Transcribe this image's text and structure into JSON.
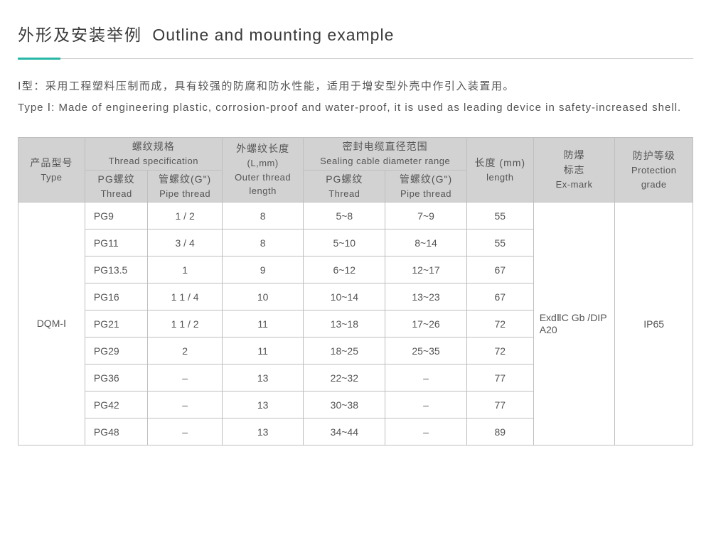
{
  "title": {
    "cn": "外形及安装举例",
    "en": "Outline and mounting example"
  },
  "desc": {
    "cn": "Ⅰ型：采用工程塑料压制而成，具有较强的防腐和防水性能，适用于增安型外壳中作引入装置用。",
    "en": "Type Ⅰ: Made of engineering plastic, corrosion-proof and water-proof, it is used as leading device in safety-increased shell."
  },
  "headers": {
    "type": {
      "cn": "产品型号",
      "en": "Type"
    },
    "threadSpec": {
      "cn": "螺纹规格",
      "en": "Thread specification"
    },
    "outerLen": {
      "cn": "外螺纹长度",
      "mid": "(L,mm)",
      "en": "Outer thread length"
    },
    "sealRange": {
      "cn": "密封电缆直径范围",
      "en": "Sealing cable diameter range"
    },
    "length": {
      "cn": "长度 (mm)",
      "en": "length"
    },
    "exmark": {
      "cn": "防爆",
      "cn2": "标志",
      "en": "Ex-mark"
    },
    "grade": {
      "cn": "防护等级",
      "en": "Protection grade"
    },
    "pg": {
      "cn": "PG螺纹",
      "en": "Thread"
    },
    "pipe": {
      "cn": "管螺纹(G\")",
      "en": "Pipe thread"
    }
  },
  "body": {
    "typeLabel": "DQM-Ⅰ",
    "exmark": "ExdⅡC Gb /DIP A20",
    "grade": "IP65",
    "rows": [
      {
        "pg": "PG9",
        "pipe": "1 / 2",
        "outer": "8",
        "spg": "5~8",
        "spipe": "7~9",
        "len": "55"
      },
      {
        "pg": "PG11",
        "pipe": "3 / 4",
        "outer": "8",
        "spg": "5~10",
        "spipe": "8~14",
        "len": "55"
      },
      {
        "pg": "PG13.5",
        "pipe": "1",
        "outer": "9",
        "spg": "6~12",
        "spipe": "12~17",
        "len": "67"
      },
      {
        "pg": "PG16",
        "pipe": "1 1 / 4",
        "outer": "10",
        "spg": "10~14",
        "spipe": "13~23",
        "len": "67"
      },
      {
        "pg": "PG21",
        "pipe": "1 1 / 2",
        "outer": "11",
        "spg": "13~18",
        "spipe": "17~26",
        "len": "72"
      },
      {
        "pg": "PG29",
        "pipe": "2",
        "outer": "11",
        "spg": "18~25",
        "spipe": "25~35",
        "len": "72"
      },
      {
        "pg": "PG36",
        "pipe": "–",
        "outer": "13",
        "spg": "22~32",
        "spipe": "–",
        "len": "77"
      },
      {
        "pg": "PG42",
        "pipe": "–",
        "outer": "13",
        "spg": "30~38",
        "spipe": "–",
        "len": "77"
      },
      {
        "pg": "PG48",
        "pipe": "–",
        "outer": "13",
        "spg": "34~44",
        "spipe": "–",
        "len": "89"
      }
    ]
  },
  "style": {
    "accent": "#26b7a7",
    "headerBg": "#d2d2d2",
    "border": "#bfbfbf",
    "text": "#555"
  }
}
